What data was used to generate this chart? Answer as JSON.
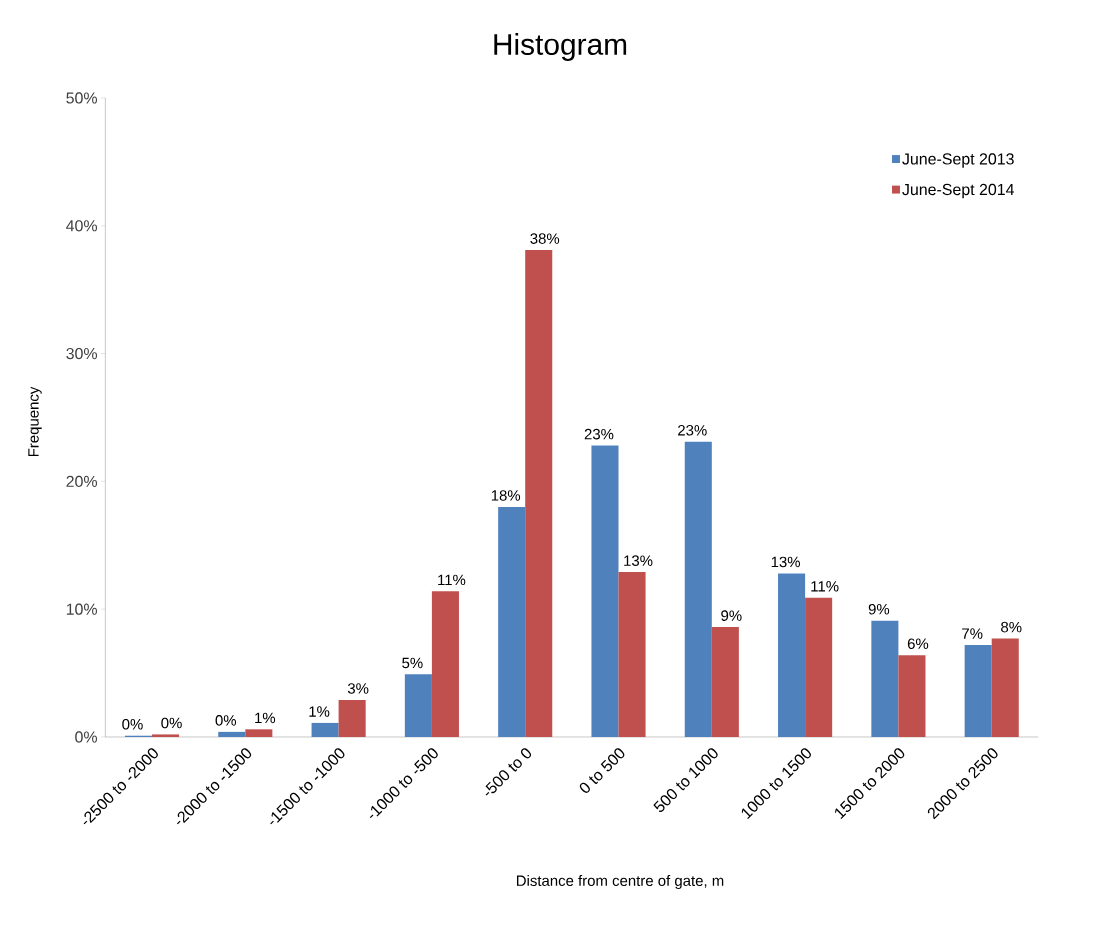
{
  "chart_data": {
    "type": "bar",
    "title": "Histogram",
    "xlabel": "Distance from centre of gate, m",
    "ylabel": "Frequency",
    "categories": [
      "-2500 to -2000",
      "-2000 to -1500",
      "-1500 to -1000",
      "-1000 to -500",
      "-500 to 0",
      "0 to 500",
      "500 to 1000",
      "1000 to 1500",
      "1500 to 2000",
      "2000 to 2500"
    ],
    "series": [
      {
        "name": "June-Sept 2013",
        "color": "#4f81bd",
        "values": [
          0.1,
          0.4,
          1.1,
          4.9,
          18.0,
          22.8,
          23.1,
          12.8,
          9.1,
          7.2
        ],
        "value_labels": [
          "0%",
          "0%",
          "1%",
          "5%",
          "18%",
          "23%",
          "23%",
          "13%",
          "9%",
          "7%"
        ]
      },
      {
        "name": "June-Sept 2014",
        "color": "#c0504d",
        "values": [
          0.2,
          0.6,
          2.9,
          11.4,
          38.1,
          12.9,
          8.6,
          10.9,
          6.4,
          7.7
        ],
        "value_labels": [
          "0%",
          "1%",
          "3%",
          "11%",
          "38%",
          "13%",
          "9%",
          "11%",
          "6%",
          "8%"
        ]
      }
    ],
    "ylim": [
      0,
      50
    ],
    "yticks": [
      {
        "value": 0,
        "label": "0%"
      },
      {
        "value": 10,
        "label": "10%"
      },
      {
        "value": 20,
        "label": "20%"
      },
      {
        "value": 30,
        "label": "30%"
      },
      {
        "value": 40,
        "label": "40%"
      },
      {
        "value": 50,
        "label": "50%"
      }
    ],
    "legend": "top right",
    "grid": false
  }
}
